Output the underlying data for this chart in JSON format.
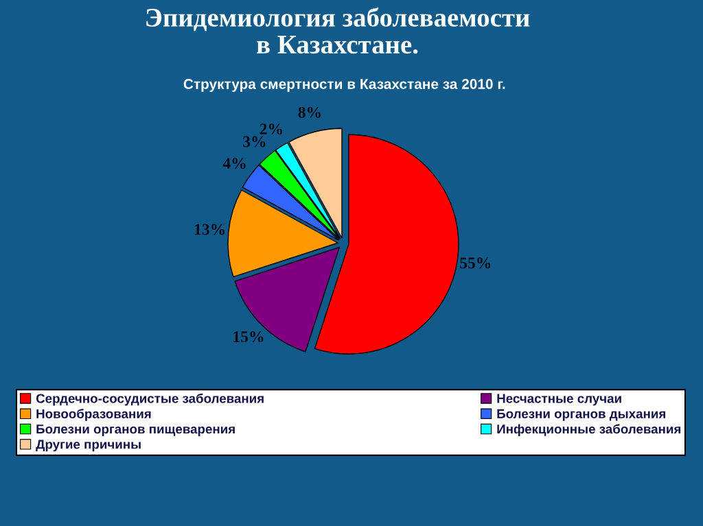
{
  "chart_data": {
    "type": "pie",
    "title": "Эпидемиология заболеваемости\nв Казахстане.",
    "subtitle": "Структура смертности в Казахстане за 2010 г.",
    "categories": [
      "Сердечно-сосудистые заболевания",
      "Несчастные случаи",
      "Новообразования",
      "Болезни органов дыхания",
      "Болезни органов пищеварения",
      "Инфекционные заболевания",
      "Другие причины"
    ],
    "values": [
      55,
      15,
      13,
      4,
      3,
      2,
      8
    ],
    "colors": [
      "#ff0000",
      "#800080",
      "#ff9900",
      "#3366ff",
      "#00ff00",
      "#00ffff",
      "#ffcc99"
    ],
    "value_labels": [
      "55%",
      "15%",
      "13%",
      "4%",
      "3%",
      "2%",
      "8%"
    ],
    "legend": "bottom"
  }
}
